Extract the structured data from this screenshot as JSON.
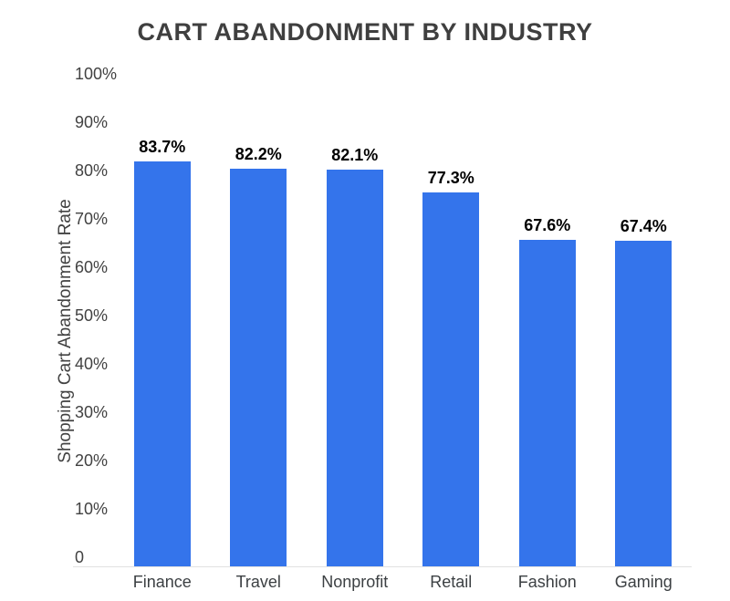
{
  "chart_data": {
    "type": "bar",
    "title": "CART ABANDONMENT BY INDUSTRY",
    "ylabel": "Shopping Cart Abandonment Rate",
    "xlabel": "",
    "categories": [
      "Finance",
      "Travel",
      "Nonprofit",
      "Retail",
      "Fashion",
      "Gaming"
    ],
    "values": [
      83.7,
      82.2,
      82.1,
      77.3,
      67.6,
      67.4
    ],
    "value_labels": [
      "83.7%",
      "82.2%",
      "82.1%",
      "77.3%",
      "67.6%",
      "67.4%"
    ],
    "y_ticks": [
      "0",
      "10%",
      "20%",
      "30%",
      "40%",
      "50%",
      "60%",
      "70%",
      "80%",
      "90%",
      "100%"
    ],
    "y_tick_values": [
      0,
      10,
      20,
      30,
      40,
      50,
      60,
      70,
      80,
      90,
      100
    ],
    "ylim": [
      0,
      100
    ],
    "grid": false,
    "legend": "none",
    "colors": {
      "bar": "#3474EB",
      "title_text": "#3F3F3F",
      "axis_text": "#424242",
      "category_text": "#3C4043",
      "value_label_text": "#000000",
      "baseline": "#E2E2E2",
      "background": "#FFFFFF"
    }
  }
}
